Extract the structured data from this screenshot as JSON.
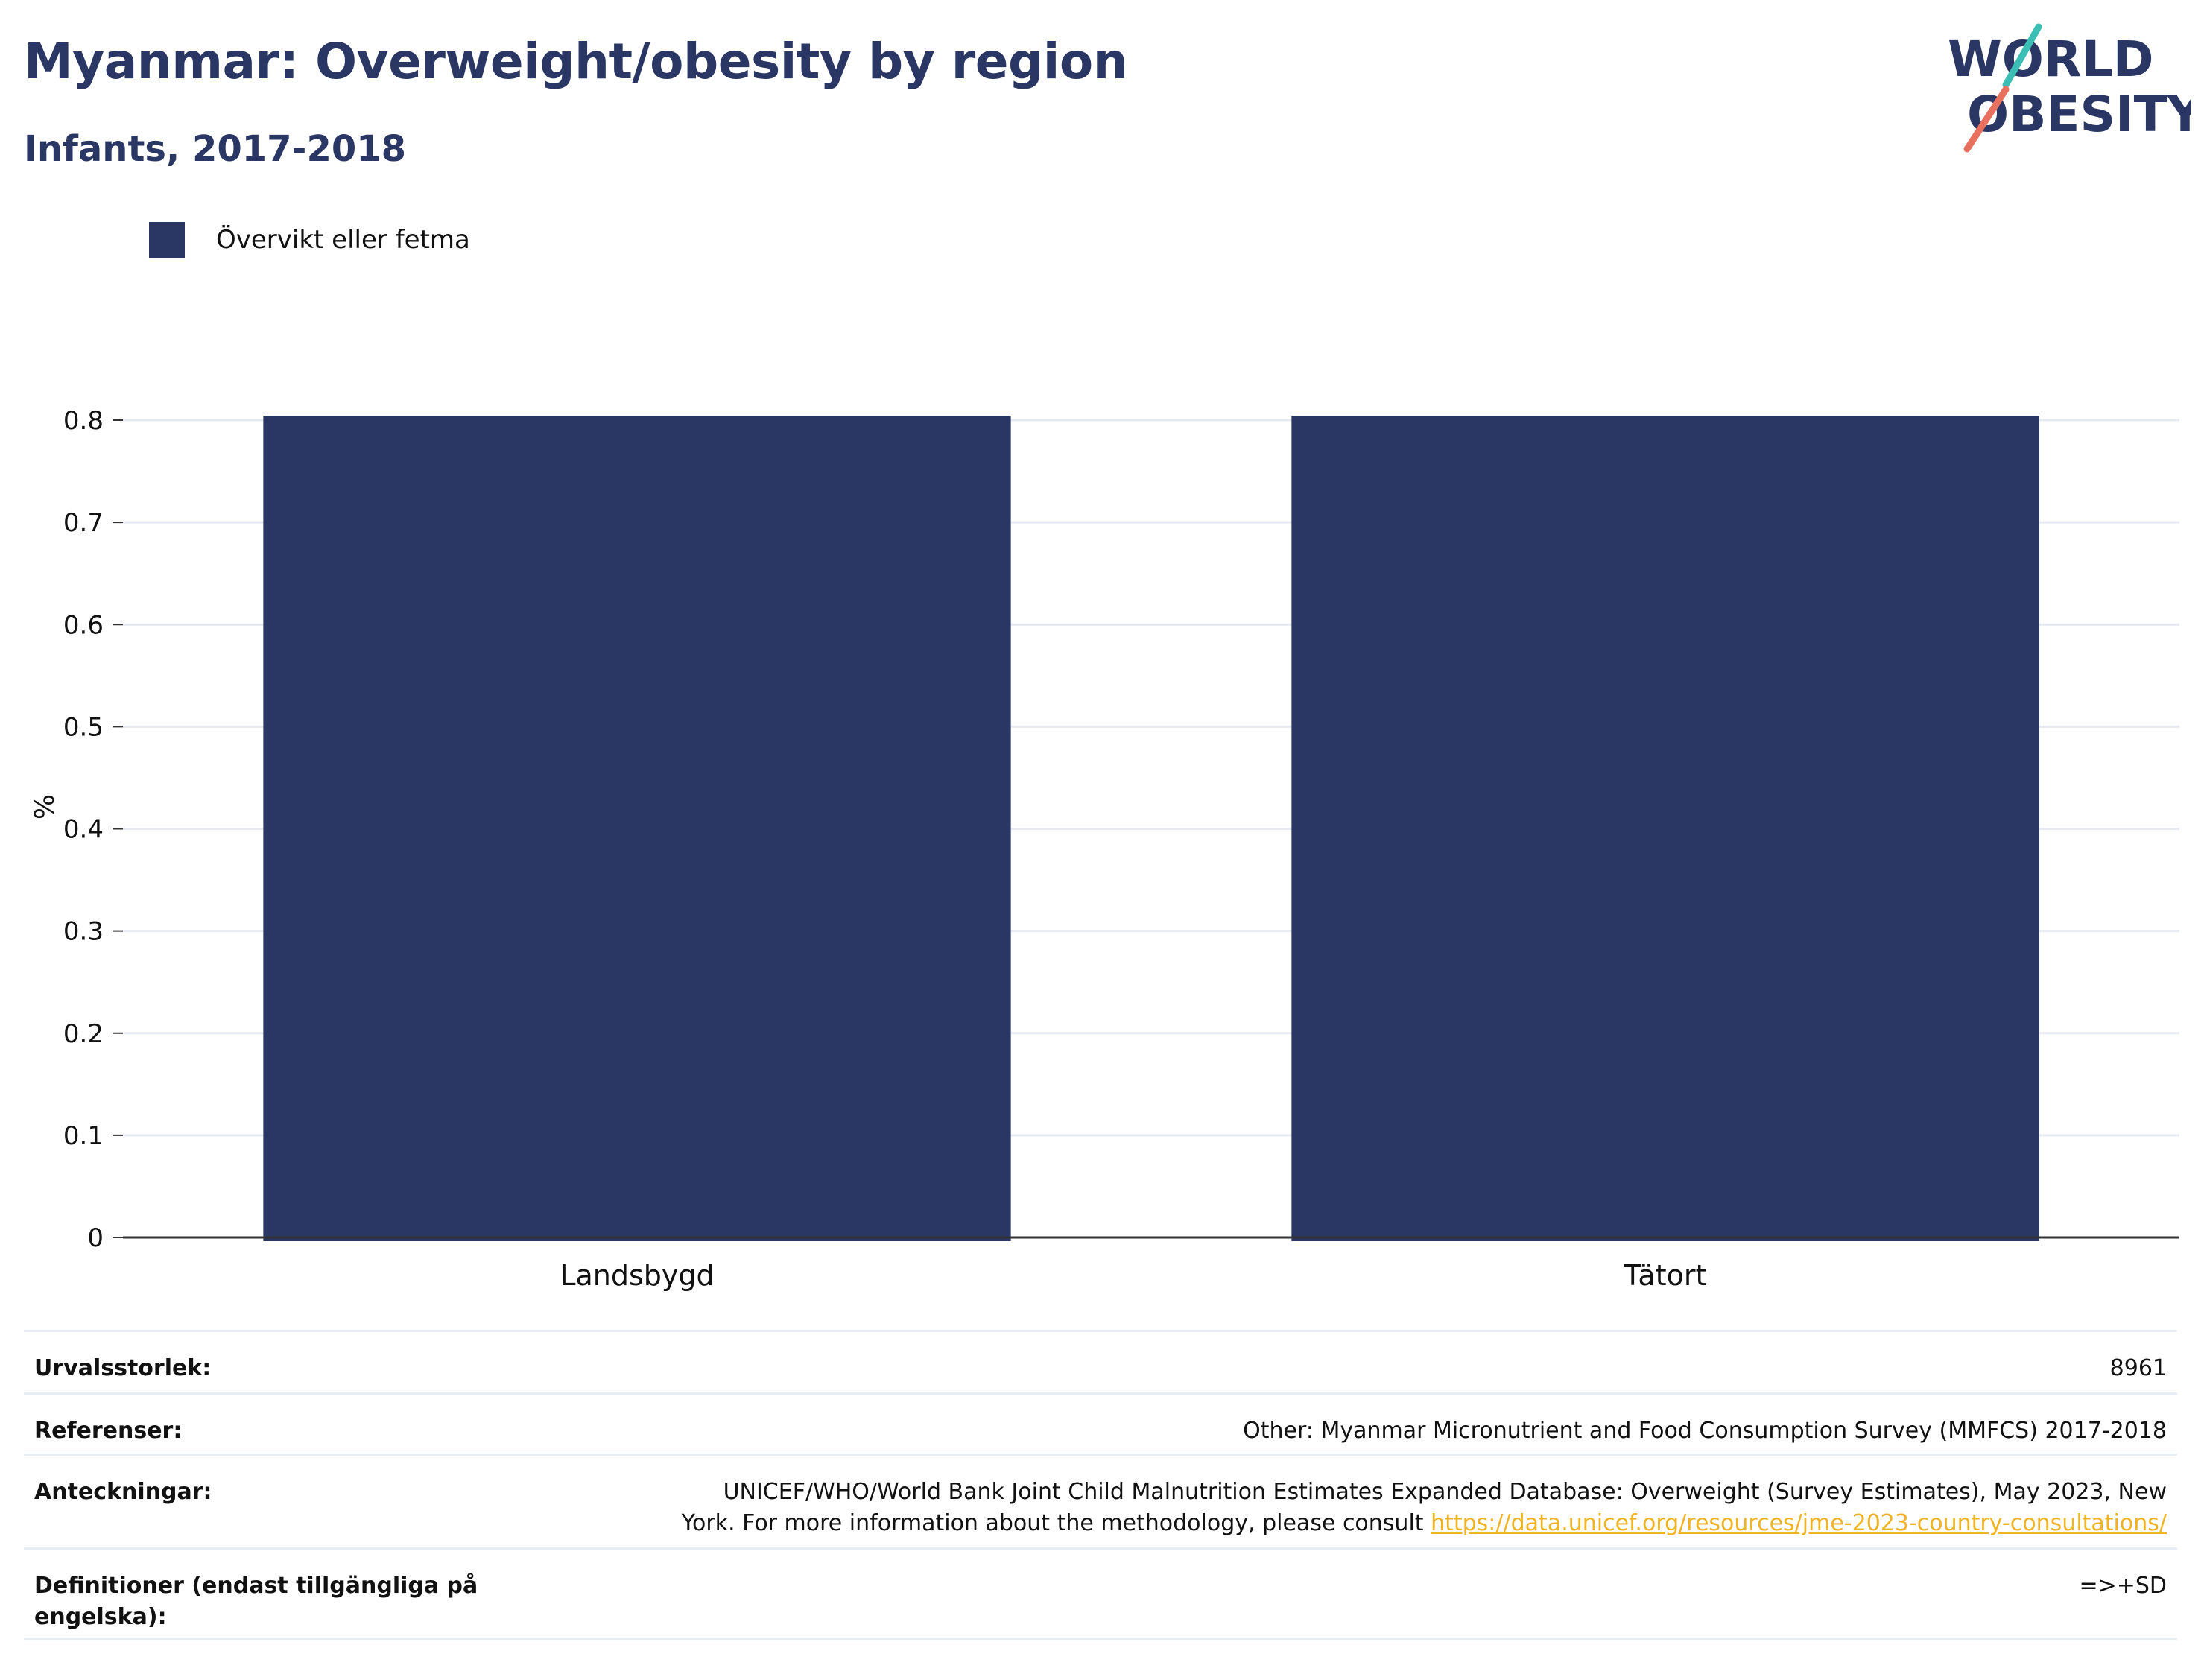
{
  "header": {
    "title": "Myanmar: Overweight/obesity by region",
    "subtitle": "Infants, 2017-2018"
  },
  "logo": {
    "line1": "WORLD",
    "line2": "OBESITY"
  },
  "colors": {
    "primary": "#2a3663",
    "logo_teal": "#3bbfb5",
    "logo_coral": "#e8705f",
    "link": "#f0b323"
  },
  "chart_data": {
    "type": "bar",
    "categories": [
      "Landsbygd",
      "Tätort"
    ],
    "series": [
      {
        "name": "Övervikt eller fetma",
        "values": [
          0.8,
          0.8
        ]
      }
    ],
    "ylabel": "%",
    "xlabel": "",
    "ylim": [
      0,
      0.8
    ],
    "yticks": [
      "0",
      "0.1",
      "0.2",
      "0.3",
      "0.4",
      "0.5",
      "0.6",
      "0.7",
      "0.8"
    ],
    "grid": true,
    "legend_position": "top-left"
  },
  "info": {
    "sample_label": "Urvalsstorlek:",
    "sample_value": "8961",
    "references_label": "Referenser:",
    "references_value": "Other: Myanmar Micronutrient and Food Consumption Survey (MMFCS) 2017-2018",
    "notes_label": "Anteckningar:",
    "notes_line1": "UNICEF/WHO/World Bank Joint Child Malnutrition Estimates Expanded Database: Overweight (Survey Estimates), May 2023, New",
    "notes_line2": "York. For more information about the methodology, please consult",
    "notes_link": "https://data.unicef.org/resources/jme-2023-country-consultations/",
    "definitions_label": "Definitioner (endast tillgängliga på engelska):",
    "definitions_value": "=>+SD"
  }
}
